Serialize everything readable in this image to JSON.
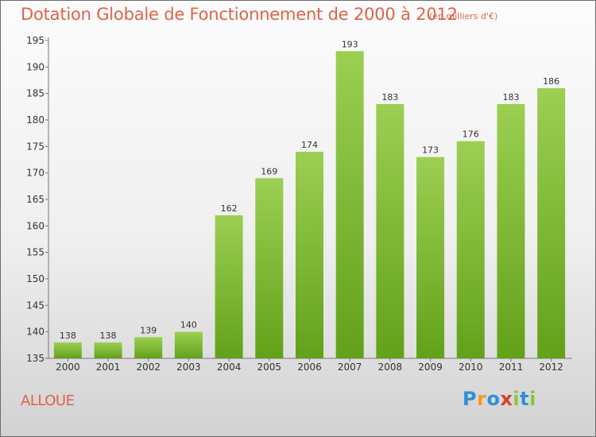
{
  "title": "Dotation Globale de Fonctionnement de 2000 à 2012",
  "subtitle": "(en milliers d'€)",
  "commune": "ALLOUE",
  "logo": {
    "letters": [
      {
        "char": "P",
        "color": "#2f8fd6"
      },
      {
        "char": "r",
        "color": "#f29a1a"
      },
      {
        "char": "o",
        "color": "#2f8fd6"
      },
      {
        "char": "x",
        "color": "#e03b2e"
      },
      {
        "char": "i",
        "color": "#8cc63f"
      },
      {
        "char": "t",
        "color": "#2f8fd6"
      },
      {
        "char": "i",
        "color": "#8cc63f"
      }
    ]
  },
  "colors": {
    "bar_top": "#9ccf52",
    "bar_bottom": "#62a11a",
    "title": "#e0624a"
  },
  "chart_data": {
    "type": "bar",
    "categories": [
      "2000",
      "2001",
      "2002",
      "2003",
      "2004",
      "2005",
      "2006",
      "2007",
      "2008",
      "2009",
      "2010",
      "2011",
      "2012"
    ],
    "values": [
      138,
      138,
      139,
      140,
      162,
      169,
      174,
      193,
      183,
      173,
      176,
      183,
      186
    ],
    "ylim": [
      135,
      195
    ],
    "yticks": [
      135,
      140,
      145,
      150,
      155,
      160,
      165,
      170,
      175,
      180,
      185,
      190,
      195
    ],
    "grid": false,
    "xlabel": "",
    "ylabel": ""
  }
}
